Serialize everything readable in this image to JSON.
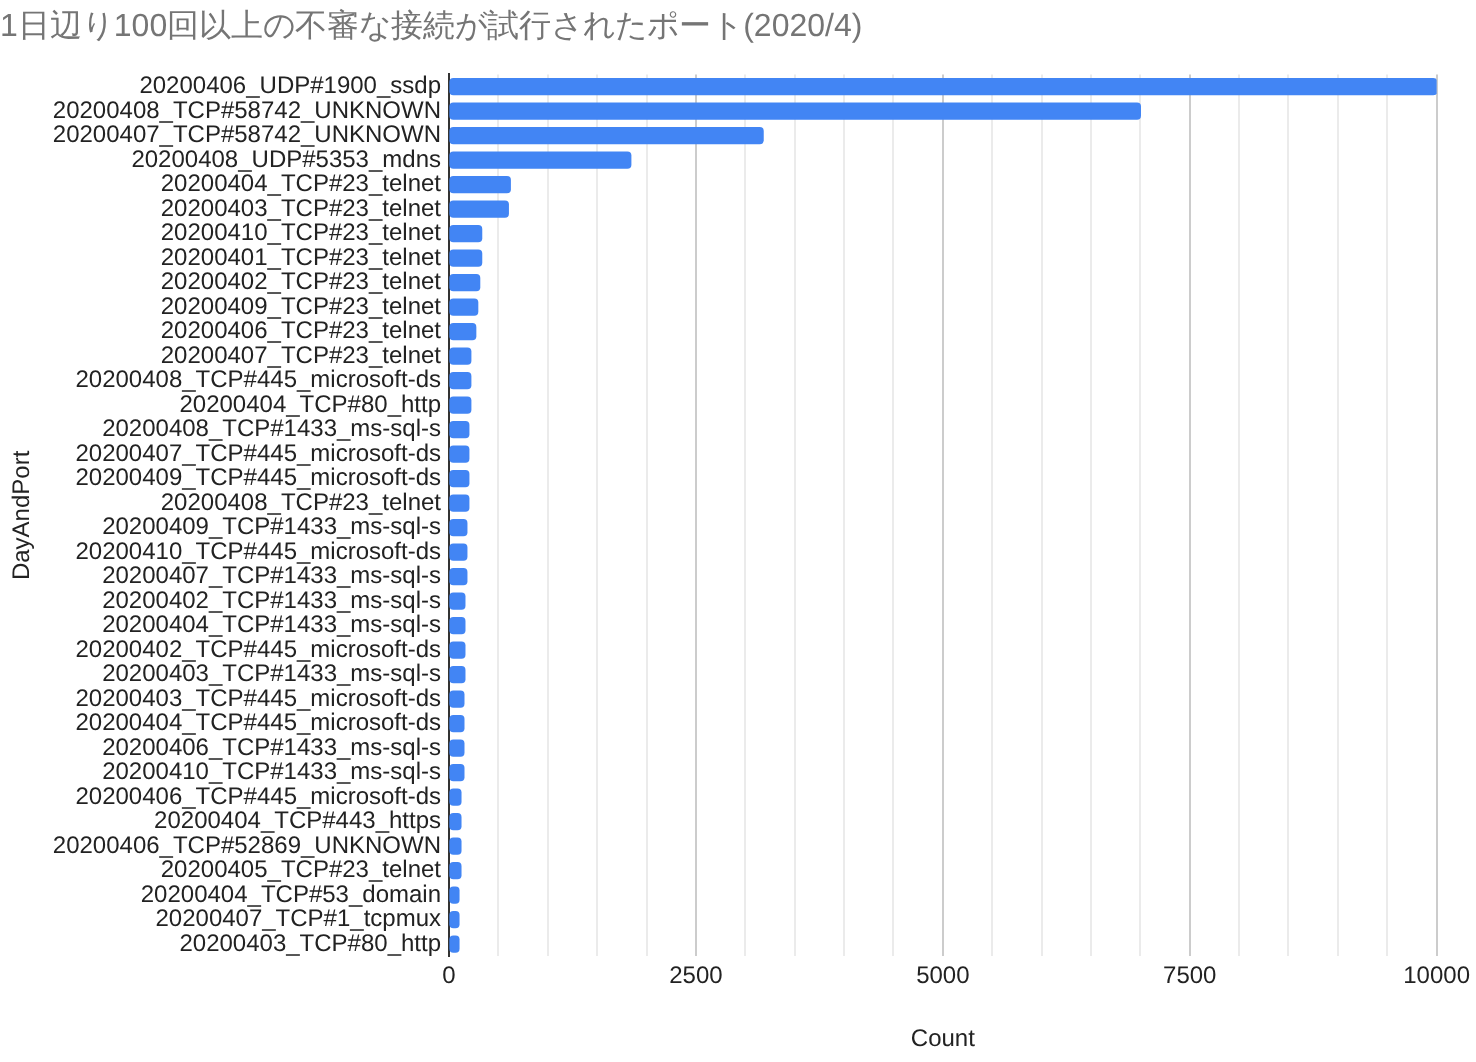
{
  "chart_data": {
    "type": "bar",
    "orientation": "horizontal",
    "title": "1日辺り100回以上の不審な接続が試行されたポート(2020/4)",
    "xlabel": "Count",
    "ylabel": "DayAndPort",
    "categories": [
      "20200406_UDP#1900_ssdp",
      "20200408_TCP#58742_UNKNOWN",
      "20200407_TCP#58742_UNKNOWN",
      "20200408_UDP#5353_mdns",
      "20200404_TCP#23_telnet",
      "20200403_TCP#23_telnet",
      "20200410_TCP#23_telnet",
      "20200401_TCP#23_telnet",
      "20200402_TCP#23_telnet",
      "20200409_TCP#23_telnet",
      "20200406_TCP#23_telnet",
      "20200407_TCP#23_telnet",
      "20200408_TCP#445_microsoft-ds",
      "20200404_TCP#80_http",
      "20200408_TCP#1433_ms-sql-s",
      "20200407_TCP#445_microsoft-ds",
      "20200409_TCP#445_microsoft-ds",
      "20200408_TCP#23_telnet",
      "20200409_TCP#1433_ms-sql-s",
      "20200410_TCP#445_microsoft-ds",
      "20200407_TCP#1433_ms-sql-s",
      "20200402_TCP#1433_ms-sql-s",
      "20200404_TCP#1433_ms-sql-s",
      "20200402_TCP#445_microsoft-ds",
      "20200403_TCP#1433_ms-sql-s",
      "20200403_TCP#445_microsoft-ds",
      "20200404_TCP#445_microsoft-ds",
      "20200406_TCP#1433_ms-sql-s",
      "20200410_TCP#1433_ms-sql-s",
      "20200406_TCP#445_microsoft-ds",
      "20200404_TCP#443_https",
      "20200406_TCP#52869_UNKNOWN",
      "20200405_TCP#23_telnet",
      "20200404_TCP#53_domain",
      "20200407_TCP#1_tcpmux",
      "20200403_TCP#80_http"
    ],
    "values": [
      10000,
      7000,
      3180,
      1840,
      620,
      600,
      330,
      330,
      310,
      290,
      270,
      220,
      220,
      220,
      200,
      200,
      200,
      200,
      180,
      180,
      180,
      160,
      160,
      160,
      160,
      150,
      150,
      150,
      150,
      120,
      120,
      120,
      120,
      100,
      100,
      100
    ],
    "color": "#4285f4",
    "xlim": [
      0,
      10000
    ],
    "xticks": [
      0,
      {
        "value": 500,
        "label": null
      },
      {
        "value": 1000,
        "label": null
      },
      {
        "value": 1500,
        "label": null
      },
      {
        "value": 2000,
        "label": null
      },
      2500,
      {
        "value": 3000,
        "label": null
      },
      {
        "value": 3500,
        "label": null
      },
      {
        "value": 4000,
        "label": null
      },
      {
        "value": 4500,
        "label": null
      },
      5000,
      {
        "value": 5500,
        "label": null
      },
      {
        "value": 6000,
        "label": null
      },
      {
        "value": 6500,
        "label": null
      },
      {
        "value": 7000,
        "label": null
      },
      7500,
      {
        "value": 8000,
        "label": null
      },
      {
        "value": 8500,
        "label": null
      },
      {
        "value": 9000,
        "label": null
      },
      {
        "value": 9500,
        "label": null
      },
      10000
    ],
    "grid": "x",
    "legend": false
  }
}
